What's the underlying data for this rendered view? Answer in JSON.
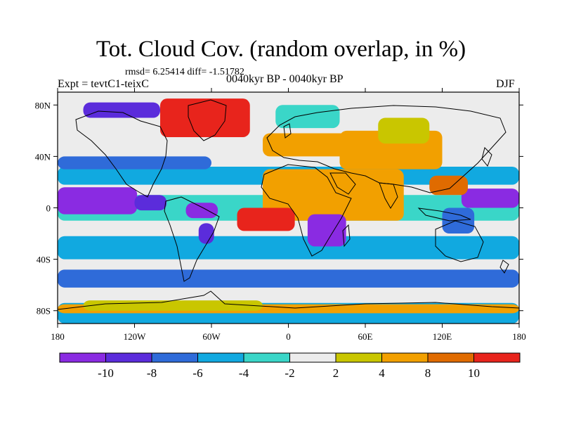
{
  "title": "Tot. Cloud Cov. (random overlap, in %)",
  "stats": "rmsd= 6.25414 diff= -1.51782",
  "experiment": "Expt = tevtC1-teixC",
  "period": "0040kyr BP - 0040kyr BP",
  "season": "DJF",
  "map": {
    "projection": "cylindrical equidistant",
    "lon_range": [
      -180,
      180
    ],
    "lat_range": [
      -90,
      90
    ],
    "lon_ticks": [
      {
        "value": -180,
        "label": "180"
      },
      {
        "value": -120,
        "label": "120W"
      },
      {
        "value": -60,
        "label": "60W"
      },
      {
        "value": 0,
        "label": "0"
      },
      {
        "value": 60,
        "label": "60E"
      },
      {
        "value": 120,
        "label": "120E"
      },
      {
        "value": 180,
        "label": "180"
      }
    ],
    "lat_ticks": [
      {
        "value": 80,
        "label": "80N"
      },
      {
        "value": 40,
        "label": "40N"
      },
      {
        "value": 0,
        "label": "0"
      },
      {
        "value": -40,
        "label": "40S"
      },
      {
        "value": -80,
        "label": "80S"
      }
    ],
    "fill_regions": [
      {
        "lon": [
          -180,
          180
        ],
        "lat": [
          -90,
          90
        ],
        "level": 5
      },
      {
        "lon": [
          -180,
          180
        ],
        "lat": [
          -62,
          -48
        ],
        "level": 2
      },
      {
        "lon": [
          -180,
          180
        ],
        "lat": [
          -48,
          -40
        ],
        "level": 5
      },
      {
        "lon": [
          -180,
          180
        ],
        "lat": [
          -40,
          -22
        ],
        "level": 3
      },
      {
        "lon": [
          -180,
          180
        ],
        "lat": [
          -90,
          -74
        ],
        "level": 3
      },
      {
        "lon": [
          -180,
          180
        ],
        "lat": [
          -82,
          -75
        ],
        "level": 7
      },
      {
        "lon": [
          -160,
          -20
        ],
        "lat": [
          -80,
          -72
        ],
        "level": 6
      },
      {
        "lon": [
          -180,
          180
        ],
        "lat": [
          -10,
          10
        ],
        "level": 4
      },
      {
        "lon": [
          -180,
          -118
        ],
        "lat": [
          -5,
          16
        ],
        "level": 0
      },
      {
        "lon": [
          -120,
          -95
        ],
        "lat": [
          -2,
          10
        ],
        "level": 1
      },
      {
        "lon": [
          -80,
          -55
        ],
        "lat": [
          -8,
          4
        ],
        "level": 0
      },
      {
        "lon": [
          -70,
          -58
        ],
        "lat": [
          -28,
          -12
        ],
        "level": 1
      },
      {
        "lon": [
          -180,
          180
        ],
        "lat": [
          18,
          32
        ],
        "level": 3
      },
      {
        "lon": [
          -180,
          -60
        ],
        "lat": [
          30,
          40
        ],
        "level": 2
      },
      {
        "lon": [
          -20,
          90
        ],
        "lat": [
          -10,
          30
        ],
        "level": 7
      },
      {
        "lon": [
          -40,
          5
        ],
        "lat": [
          -18,
          0
        ],
        "level": 9
      },
      {
        "lon": [
          15,
          45
        ],
        "lat": [
          -30,
          -5
        ],
        "level": 0
      },
      {
        "lon": [
          -20,
          60
        ],
        "lat": [
          40,
          58
        ],
        "level": 7
      },
      {
        "lon": [
          40,
          120
        ],
        "lat": [
          30,
          60
        ],
        "level": 7
      },
      {
        "lon": [
          70,
          110
        ],
        "lat": [
          50,
          70
        ],
        "level": 6
      },
      {
        "lon": [
          -100,
          -30
        ],
        "lat": [
          55,
          85
        ],
        "level": 9
      },
      {
        "lon": [
          -160,
          -100
        ],
        "lat": [
          70,
          82
        ],
        "level": 1
      },
      {
        "lon": [
          135,
          180
        ],
        "lat": [
          0,
          15
        ],
        "level": 0
      },
      {
        "lon": [
          120,
          145
        ],
        "lat": [
          -20,
          0
        ],
        "level": 2
      },
      {
        "lon": [
          -10,
          40
        ],
        "lat": [
          62,
          80
        ],
        "level": 4
      },
      {
        "lon": [
          110,
          140
        ],
        "lat": [
          10,
          25
        ],
        "level": 8
      }
    ]
  },
  "colorbar": {
    "colors": [
      "#8a2be2",
      "#5b2cdb",
      "#2f6bd9",
      "#11a9e0",
      "#3ad6c8",
      "#ececec",
      "#c9c600",
      "#f2a000",
      "#e06b00",
      "#e8241c"
    ],
    "labels": [
      "-10",
      "-8",
      "-6",
      "-4",
      "-2",
      "2",
      "4",
      "8",
      "10"
    ]
  }
}
